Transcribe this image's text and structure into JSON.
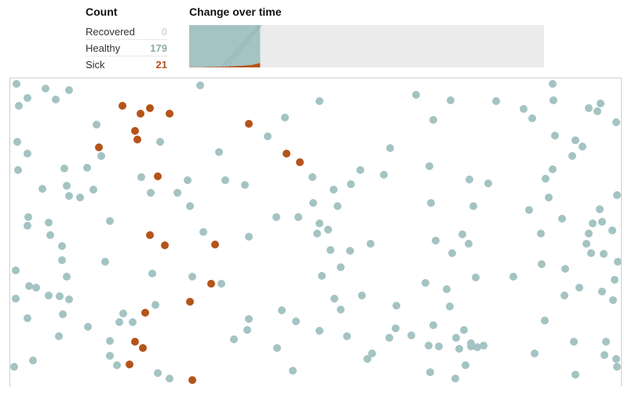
{
  "count_title": "Count",
  "chart_title": "Change over time",
  "counts": [
    {
      "label": "Recovered",
      "value": "0",
      "color": "#cfd8d8"
    },
    {
      "label": "Healthy",
      "value": "179",
      "color": "#8eaaaa"
    },
    {
      "label": "Sick",
      "value": "21",
      "color": "#b5531a"
    }
  ],
  "chart_data": {
    "type": "area",
    "total": 200,
    "progress_fraction": 0.2,
    "series": [
      {
        "values": [
          0,
          0,
          0,
          0,
          0,
          0,
          0,
          0,
          0
        ]
      },
      {
        "values": [
          199,
          199,
          198,
          197,
          196,
          194,
          192,
          189,
          179
        ]
      },
      {
        "values": [
          1,
          1,
          2,
          3,
          4,
          6,
          8,
          11,
          21
        ]
      }
    ],
    "colors": {
      "healthy_fill": "#a4c3c3",
      "sick_fill": "#b5531a",
      "recovered_fill": "#cfd8d8",
      "background": "#ebebeb"
    }
  },
  "simulation": {
    "colors": {
      "healthy": "#a4c3c3",
      "sick": "#b5531a"
    },
    "healthy": [
      [
        20,
        106
      ],
      [
        57,
        112
      ],
      [
        87,
        114
      ],
      [
        23,
        134
      ],
      [
        34,
        124
      ],
      [
        70,
        126
      ],
      [
        254,
        108
      ],
      [
        406,
        128
      ],
      [
        529,
        120
      ],
      [
        573,
        127
      ],
      [
        631,
        128
      ],
      [
        703,
        106
      ],
      [
        704,
        127
      ],
      [
        666,
        138
      ],
      [
        677,
        150
      ],
      [
        749,
        137
      ],
      [
        764,
        131
      ],
      [
        760,
        141
      ],
      [
        784,
        155
      ],
      [
        122,
        158
      ],
      [
        362,
        149
      ],
      [
        551,
        152
      ],
      [
        21,
        180
      ],
      [
        34,
        195
      ],
      [
        203,
        180
      ],
      [
        278,
        193
      ],
      [
        340,
        173
      ],
      [
        496,
        188
      ],
      [
        706,
        172
      ],
      [
        732,
        178
      ],
      [
        741,
        186
      ],
      [
        728,
        198
      ],
      [
        22,
        216
      ],
      [
        81,
        214
      ],
      [
        110,
        213
      ],
      [
        128,
        198
      ],
      [
        546,
        211
      ],
      [
        458,
        216
      ],
      [
        488,
        222
      ],
      [
        703,
        215
      ],
      [
        694,
        227
      ],
      [
        53,
        240
      ],
      [
        84,
        236
      ],
      [
        87,
        249
      ],
      [
        101,
        251
      ],
      [
        118,
        241
      ],
      [
        179,
        225
      ],
      [
        191,
        245
      ],
      [
        225,
        245
      ],
      [
        238,
        229
      ],
      [
        286,
        229
      ],
      [
        311,
        235
      ],
      [
        397,
        225
      ],
      [
        424,
        241
      ],
      [
        446,
        234
      ],
      [
        597,
        228
      ],
      [
        621,
        233
      ],
      [
        698,
        251
      ],
      [
        785,
        248
      ],
      [
        35,
        276
      ],
      [
        34,
        287
      ],
      [
        61,
        283
      ],
      [
        139,
        281
      ],
      [
        241,
        262
      ],
      [
        351,
        276
      ],
      [
        379,
        276
      ],
      [
        398,
        258
      ],
      [
        429,
        262
      ],
      [
        548,
        258
      ],
      [
        602,
        262
      ],
      [
        673,
        267
      ],
      [
        715,
        278
      ],
      [
        763,
        266
      ],
      [
        754,
        284
      ],
      [
        766,
        282
      ],
      [
        63,
        299
      ],
      [
        78,
        313
      ],
      [
        78,
        331
      ],
      [
        133,
        333
      ],
      [
        258,
        295
      ],
      [
        316,
        301
      ],
      [
        406,
        284
      ],
      [
        403,
        297
      ],
      [
        417,
        292
      ],
      [
        471,
        310
      ],
      [
        420,
        318
      ],
      [
        445,
        319
      ],
      [
        554,
        306
      ],
      [
        588,
        298
      ],
      [
        596,
        310
      ],
      [
        688,
        297
      ],
      [
        749,
        297
      ],
      [
        746,
        310
      ],
      [
        779,
        293
      ],
      [
        752,
        322
      ],
      [
        786,
        333
      ],
      [
        19,
        344
      ],
      [
        36,
        364
      ],
      [
        45,
        366
      ],
      [
        84,
        352
      ],
      [
        193,
        348
      ],
      [
        244,
        352
      ],
      [
        281,
        361
      ],
      [
        409,
        351
      ],
      [
        433,
        340
      ],
      [
        541,
        360
      ],
      [
        575,
        322
      ],
      [
        605,
        353
      ],
      [
        653,
        352
      ],
      [
        689,
        336
      ],
      [
        719,
        342
      ],
      [
        737,
        366
      ],
      [
        768,
        323
      ],
      [
        766,
        371
      ],
      [
        19,
        380
      ],
      [
        61,
        376
      ],
      [
        75,
        377
      ],
      [
        87,
        381
      ],
      [
        79,
        400
      ],
      [
        111,
        416
      ],
      [
        156,
        399
      ],
      [
        151,
        410
      ],
      [
        168,
        410
      ],
      [
        197,
        388
      ],
      [
        425,
        380
      ],
      [
        460,
        376
      ],
      [
        504,
        389
      ],
      [
        568,
        368
      ],
      [
        572,
        390
      ],
      [
        358,
        395
      ],
      [
        376,
        409
      ],
      [
        433,
        394
      ],
      [
        693,
        408
      ],
      [
        718,
        376
      ],
      [
        780,
        382
      ],
      [
        782,
        356
      ],
      [
        34,
        405
      ],
      [
        74,
        428
      ],
      [
        139,
        434
      ],
      [
        139,
        453
      ],
      [
        148,
        465
      ],
      [
        316,
        406
      ],
      [
        314,
        420
      ],
      [
        297,
        432
      ],
      [
        352,
        443
      ],
      [
        406,
        421
      ],
      [
        441,
        428
      ],
      [
        495,
        430
      ],
      [
        523,
        427
      ],
      [
        545,
        440
      ],
      [
        558,
        441
      ],
      [
        584,
        444
      ],
      [
        599,
        437
      ],
      [
        607,
        442
      ],
      [
        592,
        465
      ],
      [
        467,
        457
      ],
      [
        473,
        450
      ],
      [
        551,
        414
      ],
      [
        580,
        430
      ],
      [
        599,
        441
      ],
      [
        615,
        440
      ],
      [
        680,
        450
      ],
      [
        730,
        435
      ],
      [
        771,
        435
      ],
      [
        769,
        452
      ],
      [
        784,
        457
      ],
      [
        785,
        467
      ],
      [
        17,
        467
      ],
      [
        41,
        459
      ],
      [
        200,
        475
      ],
      [
        215,
        482
      ],
      [
        372,
        472
      ],
      [
        547,
        474
      ],
      [
        579,
        482
      ],
      [
        732,
        477
      ],
      [
        590,
        420
      ],
      [
        503,
        418
      ]
    ],
    "sick": [
      [
        155,
        134
      ],
      [
        178,
        144
      ],
      [
        190,
        137
      ],
      [
        215,
        144
      ],
      [
        171,
        166
      ],
      [
        174,
        177
      ],
      [
        125,
        187
      ],
      [
        316,
        157
      ],
      [
        364,
        195
      ],
      [
        381,
        206
      ],
      [
        200,
        224
      ],
      [
        190,
        299
      ],
      [
        209,
        312
      ],
      [
        273,
        311
      ],
      [
        268,
        361
      ],
      [
        241,
        384
      ],
      [
        184,
        398
      ],
      [
        171,
        435
      ],
      [
        181,
        443
      ],
      [
        164,
        464
      ],
      [
        244,
        484
      ]
    ]
  }
}
